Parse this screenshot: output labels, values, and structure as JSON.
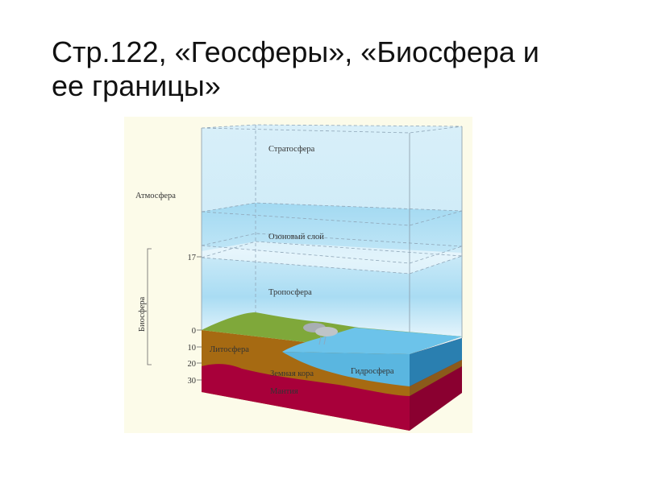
{
  "slide": {
    "title_line1": "Стр.122, «Геосферы», «Биосфера и",
    "title_line2": "ее границы»"
  },
  "diagram": {
    "labels": {
      "stratosphere": "Стратосфера",
      "atmosphere": "Атмосфера",
      "ozone_layer": "Озоновый слой",
      "troposphere": "Тропосфера",
      "biosphere": "Биосфера",
      "lithosphere": "Литосфера",
      "earth_crust": "Земная кора",
      "hydrosphere": "Гидросфера",
      "mantle": "Мантия"
    },
    "scale_ticks": [
      "17",
      "0",
      "10",
      "20",
      "30"
    ],
    "colors": {
      "background": "#fcfbe9",
      "sky": "#dff2fb",
      "ozone": "#a9dcf3",
      "grass": "#7fa83a",
      "soil": "#a66a12",
      "mantle": "#a8003a",
      "water": "#6cc3ea",
      "water_side": "#2a7fb0"
    }
  }
}
